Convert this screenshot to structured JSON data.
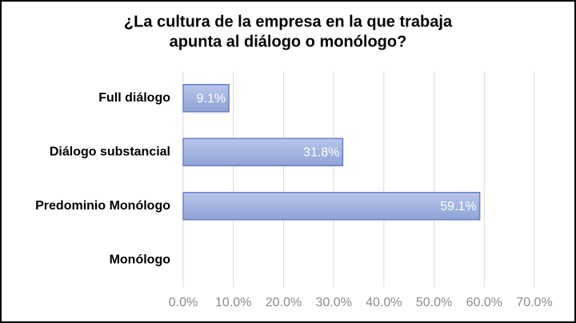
{
  "chart_data": {
    "type": "barh",
    "title": [
      "¿La cultura de la empresa en la que trabaja",
      "apunta al diálogo o monólogo?"
    ],
    "categories": [
      "Full diálogo",
      "Diálogo substancial",
      "Predominio Monólogo",
      "Monólogo"
    ],
    "values": [
      9.1,
      31.8,
      59.1,
      null
    ],
    "value_labels": [
      "9.1%",
      "31.8%",
      "59.1%",
      null
    ],
    "color": "#a3b4e0",
    "xlim": [
      0,
      70
    ],
    "xticks": [
      {
        "value": 0,
        "label": "0.0%"
      },
      {
        "value": 10,
        "label": "10.0%"
      },
      {
        "value": 20,
        "label": "20.0%"
      },
      {
        "value": 30,
        "label": "30.0%"
      },
      {
        "value": 40,
        "label": "40.0%"
      },
      {
        "value": 50,
        "label": "50.0%"
      },
      {
        "value": 60,
        "label": "60.0%"
      },
      {
        "value": 70,
        "label": "70.0%"
      }
    ],
    "grid": true
  }
}
